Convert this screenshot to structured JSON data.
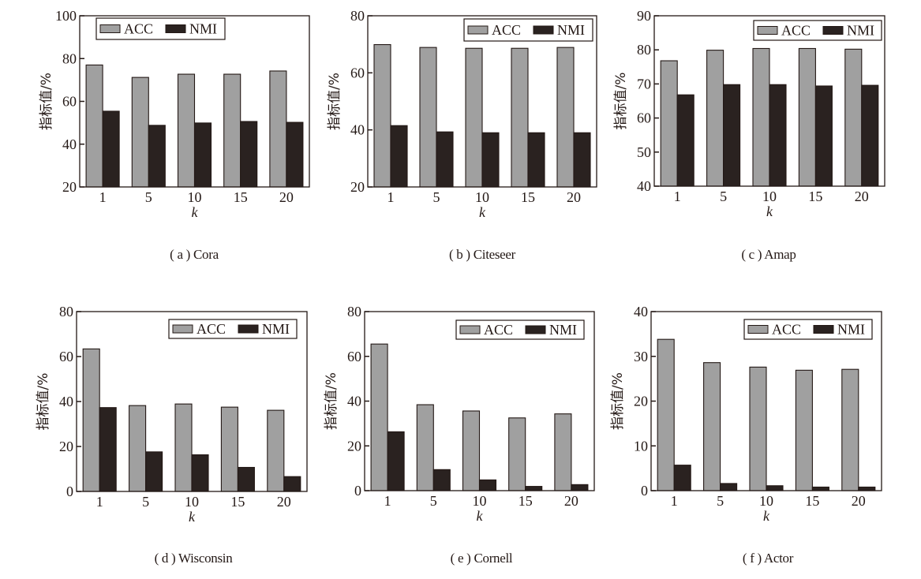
{
  "chart_data": [
    {
      "type": "bar",
      "id": "a",
      "title": "Cora",
      "caption": "( a ) Cora",
      "xlabel": "k",
      "ylabel": "指标值/%",
      "categories": [
        "1",
        "5",
        "10",
        "15",
        "20"
      ],
      "ylim": [
        20,
        100
      ],
      "yticks": [
        20,
        40,
        60,
        80,
        100
      ],
      "series": [
        {
          "name": "ACC",
          "color": "#a0a0a0",
          "values": [
            77.0,
            71.2,
            72.7,
            72.7,
            74.2
          ]
        },
        {
          "name": "NMI",
          "color": "#2a2220",
          "values": [
            55.4,
            48.8,
            49.9,
            50.6,
            50.2
          ]
        }
      ],
      "legend": "top-right",
      "grid": false
    },
    {
      "type": "bar",
      "id": "b",
      "title": "Citeseer",
      "caption": "( b ) Citeseer",
      "xlabel": "k",
      "ylabel": "指标值/%",
      "categories": [
        "1",
        "5",
        "10",
        "15",
        "20"
      ],
      "ylim": [
        20,
        80
      ],
      "yticks": [
        20,
        40,
        60,
        80
      ],
      "series": [
        {
          "name": "ACC",
          "color": "#a0a0a0",
          "values": [
            69.9,
            68.9,
            68.6,
            68.6,
            68.9
          ]
        },
        {
          "name": "NMI",
          "color": "#2a2220",
          "values": [
            41.5,
            39.3,
            39.0,
            39.0,
            39.0
          ]
        }
      ],
      "legend": "top-right",
      "grid": false
    },
    {
      "type": "bar",
      "id": "c",
      "title": "Amap",
      "caption": "( c ) Amap",
      "xlabel": "k",
      "ylabel": "指标值/%",
      "categories": [
        "1",
        "5",
        "10",
        "15",
        "20"
      ],
      "ylim": [
        40,
        90
      ],
      "yticks": [
        40,
        50,
        60,
        70,
        80,
        90
      ],
      "series": [
        {
          "name": "ACC",
          "color": "#a0a0a0",
          "values": [
            76.8,
            79.9,
            80.4,
            80.4,
            80.2
          ]
        },
        {
          "name": "NMI",
          "color": "#2a2220",
          "values": [
            66.8,
            69.8,
            69.8,
            69.4,
            69.6
          ]
        }
      ],
      "legend": "top-right",
      "grid": false
    },
    {
      "type": "bar",
      "id": "d",
      "title": "Wisconsin",
      "caption": "( d ) Wisconsin",
      "xlabel": "k",
      "ylabel": "指标值/%",
      "categories": [
        "1",
        "5",
        "10",
        "15",
        "20"
      ],
      "ylim": [
        0,
        80
      ],
      "yticks": [
        0,
        20,
        40,
        60,
        80
      ],
      "series": [
        {
          "name": "ACC",
          "color": "#a0a0a0",
          "values": [
            63.4,
            38.2,
            38.9,
            37.5,
            36.1
          ]
        },
        {
          "name": "NMI",
          "color": "#2a2220",
          "values": [
            37.3,
            17.6,
            16.3,
            10.7,
            6.6
          ]
        }
      ],
      "legend": "top-right",
      "grid": false
    },
    {
      "type": "bar",
      "id": "e",
      "title": "Cornell",
      "caption": "( e ) Cornell",
      "xlabel": "k",
      "ylabel": "指标值/%",
      "categories": [
        "1",
        "5",
        "10",
        "15",
        "20"
      ],
      "ylim": [
        0,
        80
      ],
      "yticks": [
        0,
        20,
        40,
        60,
        80
      ],
      "series": [
        {
          "name": "ACC",
          "color": "#a0a0a0",
          "values": [
            65.5,
            38.4,
            35.6,
            32.5,
            34.3
          ]
        },
        {
          "name": "NMI",
          "color": "#2a2220",
          "values": [
            26.3,
            9.4,
            4.8,
            1.9,
            2.7
          ]
        }
      ],
      "legend": "top-right",
      "grid": false
    },
    {
      "type": "bar",
      "id": "f",
      "title": "Actor",
      "caption": "( f ) Actor",
      "xlabel": "k",
      "ylabel": "指标值/%",
      "categories": [
        "1",
        "5",
        "10",
        "15",
        "20"
      ],
      "ylim": [
        0,
        40
      ],
      "yticks": [
        0,
        10,
        20,
        30,
        40
      ],
      "series": [
        {
          "name": "ACC",
          "color": "#a0a0a0",
          "values": [
            33.8,
            28.6,
            27.6,
            26.9,
            27.1
          ]
        },
        {
          "name": "NMI",
          "color": "#2a2220",
          "values": [
            5.7,
            1.6,
            1.1,
            0.8,
            0.8
          ]
        }
      ],
      "legend": "top-right",
      "grid": false
    }
  ]
}
